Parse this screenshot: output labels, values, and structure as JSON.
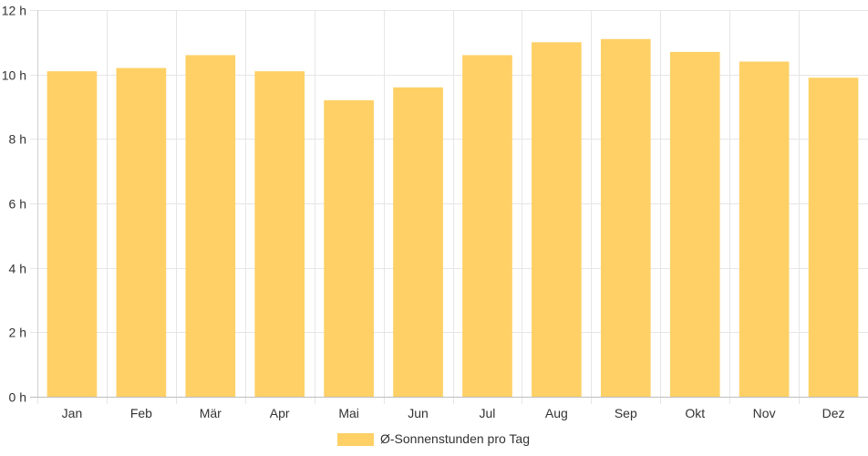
{
  "chart_data": {
    "type": "bar",
    "categories": [
      "Jan",
      "Feb",
      "Mär",
      "Apr",
      "Mai",
      "Jun",
      "Jul",
      "Aug",
      "Sep",
      "Okt",
      "Nov",
      "Dez"
    ],
    "series": [
      {
        "name": "Ø-Sonnenstunden pro Tag",
        "values": [
          10.1,
          10.2,
          10.6,
          10.1,
          9.2,
          9.6,
          10.6,
          11.0,
          11.1,
          10.7,
          10.4,
          9.9
        ],
        "color": "#fed066"
      }
    ],
    "ylim": [
      0,
      12
    ],
    "yticks": [
      0,
      2,
      4,
      6,
      8,
      10,
      12
    ],
    "y_tick_suffix": " h",
    "grid": true,
    "legend_position": "bottom-center",
    "legend_label": "Ø-Sonnenstunden pro Tag"
  }
}
